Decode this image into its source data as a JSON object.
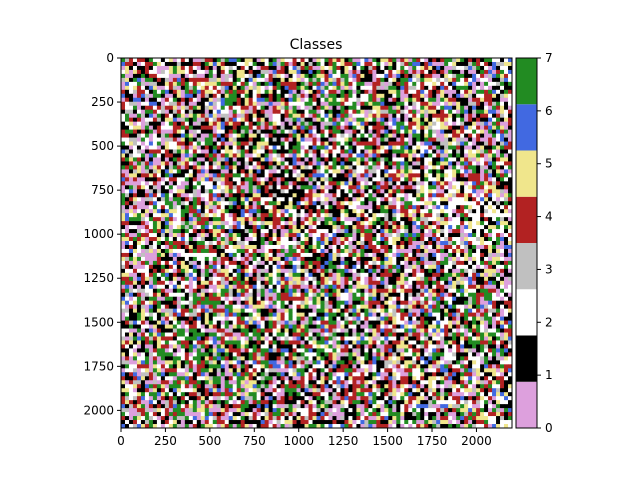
{
  "chart_data": {
    "type": "heatmap",
    "title": "Classes",
    "xlabel": "",
    "ylabel": "",
    "x_range": [
      0,
      2200
    ],
    "y_range": [
      2100,
      0
    ],
    "x_ticks": [
      "0",
      "250",
      "500",
      "750",
      "1000",
      "1250",
      "1500",
      "1750",
      "2000"
    ],
    "y_ticks": [
      "0",
      "250",
      "500",
      "750",
      "1000",
      "1250",
      "1500",
      "1750",
      "2000"
    ],
    "colorbar": {
      "range": [
        0,
        7
      ],
      "ticks": [
        "0",
        "1",
        "2",
        "3",
        "4",
        "5",
        "6",
        "7"
      ],
      "classes": [
        {
          "value": 0,
          "color": "#dda0dd"
        },
        {
          "value": 1,
          "color": "#000000"
        },
        {
          "value": 2,
          "color": "#ffffff"
        },
        {
          "value": 3,
          "color": "#c0c0c0"
        },
        {
          "value": 4,
          "color": "#b22222"
        },
        {
          "value": 5,
          "color": "#f0e68c"
        },
        {
          "value": 6,
          "color": "#4169e1"
        },
        {
          "value": 7,
          "color": "#228b22"
        }
      ]
    }
  }
}
